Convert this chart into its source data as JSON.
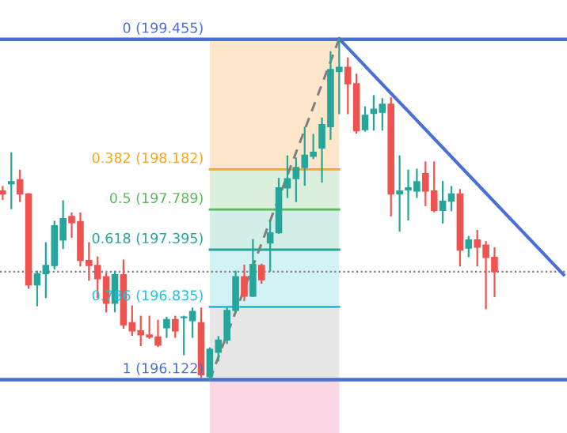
{
  "chart_data": {
    "type": "candlestick",
    "categories": [
      null,
      null,
      null,
      null,
      null,
      null,
      null,
      null,
      null,
      null,
      null,
      null,
      null,
      null,
      null,
      null,
      null,
      null,
      null,
      null,
      null,
      null,
      null,
      null,
      null,
      null,
      null,
      null,
      null,
      null,
      null,
      null,
      null,
      null,
      null,
      null,
      null,
      null,
      null,
      null,
      null,
      null,
      null,
      null,
      null,
      null,
      null,
      null,
      null,
      null,
      null,
      null,
      null,
      null,
      null,
      null,
      null,
      null,
      null,
      null,
      null,
      null,
      null,
      null,
      null,
      null
    ],
    "ohlc": [
      [
        197.97,
        198.01,
        197.89,
        197.94
      ],
      [
        198.04,
        198.34,
        197.8,
        198.06
      ],
      [
        198.08,
        198.17,
        197.87,
        197.94
      ],
      [
        197.94,
        197.94,
        197.02,
        197.05
      ],
      [
        197.05,
        197.18,
        196.85,
        197.16
      ],
      [
        197.16,
        197.46,
        196.93,
        197.24
      ],
      [
        197.24,
        197.67,
        197.21,
        197.63
      ],
      [
        197.49,
        197.87,
        197.41,
        197.7
      ],
      [
        197.72,
        197.75,
        197.52,
        197.66
      ],
      [
        197.67,
        197.75,
        197.24,
        197.29
      ],
      [
        197.29,
        197.46,
        197.1,
        197.24
      ],
      [
        197.24,
        197.32,
        196.93,
        197.11
      ],
      [
        197.13,
        197.16,
        196.79,
        196.87
      ],
      [
        196.87,
        197.18,
        196.79,
        197.15
      ],
      [
        197.15,
        197.29,
        196.63,
        196.66
      ],
      [
        196.68,
        196.84,
        196.56,
        196.6
      ],
      [
        196.6,
        196.74,
        196.46,
        196.56
      ],
      [
        196.56,
        196.74,
        196.53,
        196.54
      ],
      [
        196.54,
        196.7,
        196.45,
        196.46
      ],
      [
        196.63,
        196.73,
        196.54,
        196.71
      ],
      [
        196.71,
        196.74,
        196.54,
        196.6
      ],
      [
        196.73,
        196.74,
        196.37,
        196.73
      ],
      [
        196.7,
        196.82,
        196.54,
        196.79
      ],
      [
        196.68,
        196.82,
        196.15,
        196.17
      ],
      [
        196.15,
        196.43,
        196.122,
        196.42
      ],
      [
        196.39,
        196.54,
        196.31,
        196.51
      ],
      [
        196.51,
        196.82,
        196.48,
        196.8
      ],
      [
        196.8,
        197.18,
        196.79,
        197.13
      ],
      [
        197.13,
        197.24,
        196.9,
        196.94
      ],
      [
        196.94,
        197.49,
        196.94,
        197.25
      ],
      [
        197.24,
        197.25,
        197.07,
        197.1
      ],
      [
        197.46,
        197.67,
        197.19,
        197.56
      ],
      [
        197.56,
        198.09,
        197.56,
        198.0
      ],
      [
        198.0,
        198.31,
        197.91,
        198.09
      ],
      [
        198.09,
        198.29,
        197.87,
        198.2
      ],
      [
        198.2,
        198.59,
        198.03,
        198.32
      ],
      [
        198.31,
        198.52,
        198.29,
        198.35
      ],
      [
        198.39,
        198.68,
        198.06,
        198.62
      ],
      [
        198.6,
        199.33,
        198.48,
        199.16
      ],
      [
        199.14,
        199.455,
        198.73,
        199.18
      ],
      [
        199.18,
        199.27,
        198.73,
        199.02
      ],
      [
        199.02,
        199.11,
        198.54,
        198.56
      ],
      [
        198.57,
        198.79,
        198.56,
        198.71
      ],
      [
        198.73,
        198.9,
        198.57,
        198.77
      ],
      [
        198.74,
        198.87,
        198.57,
        198.82
      ],
      [
        198.82,
        198.88,
        197.73,
        197.94
      ],
      [
        197.94,
        198.31,
        197.58,
        197.97
      ],
      [
        197.98,
        198.17,
        197.69,
        198.0
      ],
      [
        197.97,
        198.18,
        197.91,
        198.06
      ],
      [
        198.14,
        198.25,
        197.83,
        197.97
      ],
      [
        197.97,
        198.25,
        197.77,
        197.78
      ],
      [
        197.78,
        198.06,
        197.66,
        197.87
      ],
      [
        197.87,
        198.01,
        197.78,
        197.94
      ],
      [
        197.94,
        197.98,
        197.24,
        197.39
      ],
      [
        197.41,
        197.52,
        197.33,
        197.49
      ],
      [
        197.49,
        197.58,
        197.24,
        197.42
      ],
      [
        197.44,
        197.47,
        196.82,
        197.32
      ],
      [
        197.32,
        197.41,
        196.94,
        197.18
      ],
      null,
      null,
      null,
      null,
      null,
      null,
      null,
      null
    ],
    "colors": [
      "#ef5350",
      "#26a69a",
      "#ef5350",
      "#ef5350",
      "#26a69a",
      "#26a69a",
      "#26a69a",
      "#26a69a",
      "#ef5350",
      "#ef5350",
      "#ef5350",
      "#ef5350",
      "#ef5350",
      "#26a69a",
      "#ef5350",
      "#ef5350",
      "#ef5350",
      "#ef5350",
      "#ef5350",
      "#26a69a",
      "#ef5350",
      "#26a69a",
      "#26a69a",
      "#ef5350",
      "#26a69a",
      "#26a69a",
      "#26a69a",
      "#26a69a",
      "#ef5350",
      "#26a69a",
      "#ef5350",
      "#26a69a",
      "#26a69a",
      "#26a69a",
      "#26a69a",
      "#26a69a",
      "#26a69a",
      "#26a69a",
      "#26a69a",
      "#26a69a",
      "#ef5350",
      "#ef5350",
      "#26a69a",
      "#26a69a",
      "#26a69a",
      "#ef5350",
      "#26a69a",
      "#26a69a",
      "#26a69a",
      "#ef5350",
      "#ef5350",
      "#26a69a",
      "#26a69a",
      "#ef5350",
      "#26a69a",
      "#ef5350",
      "#ef5350",
      "#ef5350",
      null,
      null,
      null,
      null,
      null,
      null,
      null,
      null
    ],
    "series": [
      {
        "type": "line",
        "color": "#4a6fd6",
        "line_style": "solid",
        "values": [
          null,
          null,
          null,
          null,
          null,
          null,
          null,
          null,
          null,
          null,
          null,
          null,
          null,
          null,
          null,
          null,
          null,
          null,
          null,
          null,
          null,
          null,
          null,
          null,
          null,
          null,
          null,
          null,
          null,
          null,
          null,
          null,
          null,
          null,
          null,
          null,
          null,
          null,
          null,
          199.46,
          null,
          null,
          null,
          null,
          null,
          null,
          null,
          null,
          null,
          null,
          null,
          null,
          null,
          null,
          null,
          null,
          null,
          null,
          null,
          null,
          null,
          null,
          null,
          null,
          null,
          197.15
        ]
      },
      {
        "type": "line",
        "color": "#808080",
        "line_style": "dashed",
        "values": [
          null,
          null,
          null,
          null,
          null,
          null,
          null,
          null,
          null,
          null,
          null,
          null,
          null,
          null,
          null,
          null,
          null,
          null,
          null,
          null,
          null,
          null,
          null,
          null,
          196.12,
          null,
          null,
          null,
          null,
          null,
          null,
          null,
          null,
          null,
          null,
          null,
          null,
          null,
          null,
          199.46,
          null,
          null,
          null,
          null,
          null,
          null,
          null,
          null,
          null,
          null,
          null,
          null,
          null,
          null,
          null,
          null,
          null,
          null,
          null,
          null,
          null,
          null,
          null,
          null,
          null,
          null
        ]
      }
    ],
    "ylim": [
      195.6,
      199.84
    ],
    "ref_lines": [
      {
        "axis": "y",
        "value": 197.18,
        "color": "#808080",
        "line_style": "dotted"
      },
      {
        "axis": "y",
        "value": 199.455,
        "label": "0 (199.455)",
        "color": "#4a6fd6"
      },
      {
        "axis": "y",
        "value": 198.182,
        "label": "0.382 (198.182)",
        "color": "#f5a623"
      },
      {
        "axis": "y",
        "value": 197.789,
        "label": "0.5 (197.789)",
        "color": "#5cb85c"
      },
      {
        "axis": "y",
        "value": 197.395,
        "label": "0.618 (197.395)",
        "color": "#26a69a"
      },
      {
        "axis": "y",
        "value": 196.835,
        "label": "0.786 (196.835)",
        "color": "#22c1dc"
      },
      {
        "axis": "y",
        "value": 196.122,
        "label": "1 (196.122)",
        "color": "#4a6fd6"
      }
    ],
    "bands": [
      {
        "axis": "y",
        "from": 198.182,
        "to": 199.455,
        "color": "#fde6c9"
      },
      {
        "axis": "y",
        "from": 197.789,
        "to": 198.182,
        "color": "#dcefdc"
      },
      {
        "axis": "y",
        "from": 197.395,
        "to": 197.789,
        "color": "#d3eee6"
      },
      {
        "axis": "y",
        "from": 196.835,
        "to": 197.395,
        "color": "#d2f2f6"
      },
      {
        "axis": "y",
        "from": 196.122,
        "to": 196.835,
        "color": "#e6e6e6"
      },
      {
        "axis": "y",
        "from": 195.6,
        "to": 196.122,
        "color": "#fbd6e5"
      }
    ]
  }
}
